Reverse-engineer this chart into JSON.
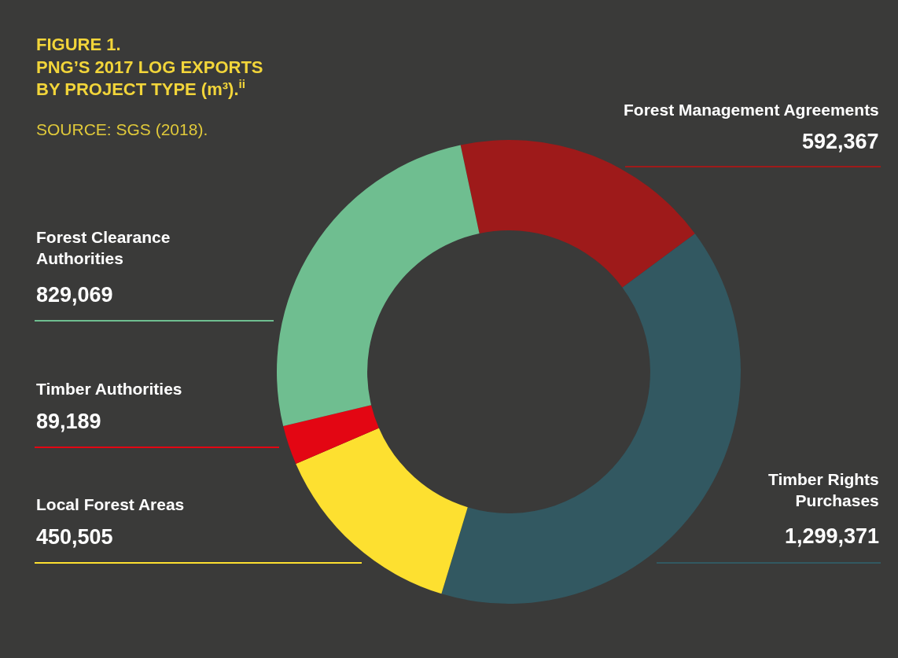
{
  "chart_data": {
    "type": "donut",
    "title": "FIGURE 1.\nPNG’S 2017 LOG EXPORTS\nBY PROJECT TYPE (m³).$^{ii}$",
    "annotations": [
      "SOURCE: SGS (2018)."
    ],
    "categories": [
      "Forest Management Agreements",
      "Timber Rights Purchases",
      "Local Forest Areas",
      "Timber Authorities",
      "Forest Clearance Authorities"
    ],
    "values": [
      592367,
      1299371,
      450505,
      89189,
      829069
    ],
    "value_labels": [
      "592,367",
      "1,299,371",
      "450,505",
      "89,189",
      "829,069"
    ],
    "colors": [
      "#9e1a1a",
      "#325861",
      "#fde030",
      "#e30613",
      "#6fbe90"
    ],
    "legend": false
  }
}
